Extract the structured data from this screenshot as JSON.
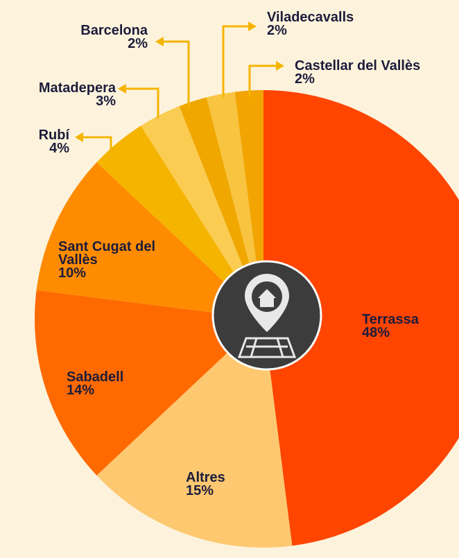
{
  "chart_data": {
    "type": "pie",
    "categories": [
      "Terrassa",
      "Altres",
      "Sabadell",
      "Sant Cugat del Vallès",
      "Rubí",
      "Matadepera",
      "Barcelona",
      "Viladecavalls",
      "Castellar del Vallès"
    ],
    "values": [
      48,
      15,
      14,
      10,
      4,
      3,
      2,
      2,
      2
    ],
    "value_labels": [
      "48%",
      "15%",
      "14%",
      "10%",
      "4%",
      "3%",
      "2%",
      "2%",
      "2%"
    ],
    "colors": [
      "#ff4500",
      "#fdc870",
      "#ff6a00",
      "#ff8c00",
      "#f5b400",
      "#fbcc52",
      "#f0a800",
      "#f9c440",
      "#f2a400"
    ]
  }
}
